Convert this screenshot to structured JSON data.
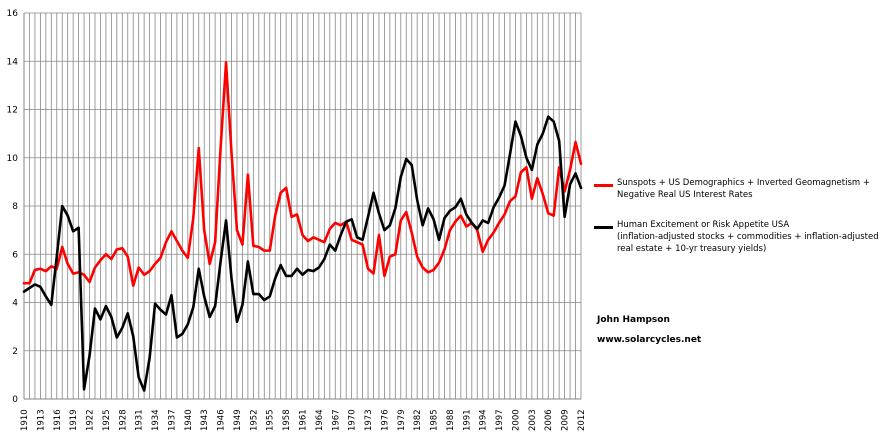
{
  "chart_data": {
    "type": "line",
    "ylim": [
      0,
      16
    ],
    "yticks": [
      0,
      2,
      4,
      6,
      8,
      10,
      12,
      14,
      16
    ],
    "xlim": [
      1910,
      2012
    ],
    "xtick_labels": [
      "1910",
      "1913",
      "1916",
      "1919",
      "1922",
      "1925",
      "1928",
      "1931",
      "1934",
      "1937",
      "1940",
      "1943",
      "1946",
      "1949",
      "1952",
      "1955",
      "1958",
      "1961",
      "1964",
      "1967",
      "1970",
      "1973",
      "1976",
      "1979",
      "1982",
      "1985",
      "1988",
      "1991",
      "1994",
      "1997",
      "2000",
      "2003",
      "2006",
      "2009",
      "2012"
    ],
    "grid": true,
    "series": [
      {
        "name": "Sunspots + US Demographics + Inverted Geomagnetism + Negative Real US Interest Rates",
        "color": "#ff0000",
        "x": [
          1910,
          1911,
          1912,
          1913,
          1914,
          1915,
          1916,
          1917,
          1918,
          1919,
          1920,
          1921,
          1922,
          1923,
          1924,
          1925,
          1926,
          1927,
          1928,
          1929,
          1930,
          1931,
          1932,
          1933,
          1934,
          1935,
          1936,
          1937,
          1938,
          1939,
          1940,
          1941,
          1942,
          1943,
          1944,
          1945,
          1946,
          1947,
          1948,
          1949,
          1950,
          1951,
          1952,
          1953,
          1954,
          1955,
          1956,
          1957,
          1958,
          1959,
          1960,
          1961,
          1962,
          1963,
          1964,
          1965,
          1966,
          1967,
          1968,
          1969,
          1970,
          1971,
          1972,
          1973,
          1974,
          1975,
          1976,
          1977,
          1978,
          1979,
          1980,
          1981,
          1982,
          1983,
          1984,
          1985,
          1986,
          1987,
          1988,
          1989,
          1990,
          1991,
          1992,
          1993,
          1994,
          1995,
          1996,
          1997,
          1998,
          1999,
          2000,
          2001,
          2002,
          2003,
          2004,
          2005,
          2006,
          2007,
          2008,
          2009,
          2010,
          2011,
          2012
        ],
        "values": [
          4.8,
          4.8,
          5.35,
          5.4,
          5.3,
          5.5,
          5.4,
          6.3,
          5.6,
          5.2,
          5.25,
          5.15,
          4.85,
          5.45,
          5.75,
          6.0,
          5.8,
          6.2,
          6.25,
          5.9,
          4.7,
          5.45,
          5.15,
          5.3,
          5.6,
          5.85,
          6.5,
          6.95,
          6.55,
          6.15,
          5.85,
          7.5,
          10.4,
          7.0,
          5.6,
          6.5,
          10.4,
          13.95,
          10.2,
          7.0,
          6.4,
          9.3,
          6.35,
          6.3,
          6.15,
          6.15,
          7.6,
          8.55,
          8.75,
          7.55,
          7.65,
          6.8,
          6.55,
          6.7,
          6.6,
          6.5,
          7.05,
          7.3,
          7.2,
          7.35,
          6.6,
          6.5,
          6.4,
          5.4,
          5.2,
          6.8,
          5.1,
          5.9,
          6.0,
          7.4,
          7.75,
          6.9,
          5.9,
          5.45,
          5.25,
          5.35,
          5.65,
          6.2,
          7.0,
          7.35,
          7.6,
          7.15,
          7.3,
          7.0,
          6.1,
          6.6,
          6.9,
          7.3,
          7.65,
          8.2,
          8.4,
          9.4,
          9.6,
          8.3,
          9.15,
          8.5,
          7.7,
          7.6,
          9.6,
          8.6,
          9.5,
          10.65,
          9.75
        ]
      },
      {
        "name": "Human Excitement or Risk Appetite USA (inflation-adjusted stocks + commodities + inflation-adjusted real estate + 10-yr treasury yields)",
        "color": "#000000",
        "x": [
          1910,
          1911,
          1912,
          1913,
          1914,
          1915,
          1916,
          1917,
          1918,
          1919,
          1920,
          1921,
          1922,
          1923,
          1924,
          1925,
          1926,
          1927,
          1928,
          1929,
          1930,
          1931,
          1932,
          1933,
          1934,
          1935,
          1936,
          1937,
          1938,
          1939,
          1940,
          1941,
          1942,
          1943,
          1944,
          1945,
          1946,
          1947,
          1948,
          1949,
          1950,
          1951,
          1952,
          1953,
          1954,
          1955,
          1956,
          1957,
          1958,
          1959,
          1960,
          1961,
          1962,
          1963,
          1964,
          1965,
          1966,
          1967,
          1968,
          1969,
          1970,
          1971,
          1972,
          1973,
          1974,
          1975,
          1976,
          1977,
          1978,
          1979,
          1980,
          1981,
          1982,
          1983,
          1984,
          1985,
          1986,
          1987,
          1988,
          1989,
          1990,
          1991,
          1992,
          1993,
          1994,
          1995,
          1996,
          1997,
          1998,
          1999,
          2000,
          2001,
          2002,
          2003,
          2004,
          2005,
          2006,
          2007,
          2008,
          2009,
          2010,
          2011,
          2012
        ],
        "values": [
          4.45,
          4.6,
          4.75,
          4.65,
          4.25,
          3.9,
          5.9,
          8.0,
          7.6,
          6.95,
          7.1,
          0.4,
          1.8,
          3.75,
          3.3,
          3.85,
          3.4,
          2.55,
          2.95,
          3.55,
          2.6,
          0.9,
          0.35,
          1.7,
          3.95,
          3.7,
          3.5,
          4.3,
          2.55,
          2.7,
          3.1,
          3.8,
          5.4,
          4.25,
          3.4,
          3.85,
          5.7,
          7.4,
          5.0,
          3.2,
          3.9,
          5.7,
          4.35,
          4.35,
          4.1,
          4.25,
          5.0,
          5.55,
          5.1,
          5.1,
          5.4,
          5.15,
          5.35,
          5.3,
          5.45,
          5.8,
          6.4,
          6.15,
          6.8,
          7.35,
          7.45,
          6.7,
          6.6,
          7.55,
          8.55,
          7.7,
          7.0,
          7.2,
          7.9,
          9.2,
          9.95,
          9.7,
          8.25,
          7.2,
          7.9,
          7.45,
          6.6,
          7.5,
          7.8,
          7.95,
          8.3,
          7.65,
          7.3,
          7.05,
          7.4,
          7.3,
          7.95,
          8.35,
          8.85,
          10.15,
          11.5,
          10.9,
          10.0,
          9.5,
          10.55,
          11.0,
          11.7,
          11.5,
          10.7,
          7.55,
          8.9,
          9.35,
          8.75
        ]
      }
    ],
    "legend": {
      "position": "right",
      "entries": [
        {
          "lines": [
            "Sunspots + US Demographics + Inverted Geomagnetism +",
            "Negative Real US Interest Rates"
          ]
        },
        {
          "lines": [
            "Human Excitement or Risk Appetite USA",
            "(inflation-adjusted stocks + commodities + inflation-adjusted",
            "real estate + 10-yr treasury yields)"
          ]
        }
      ]
    },
    "annotations": [
      "John Hampson",
      "www.solarcycles.net"
    ]
  }
}
